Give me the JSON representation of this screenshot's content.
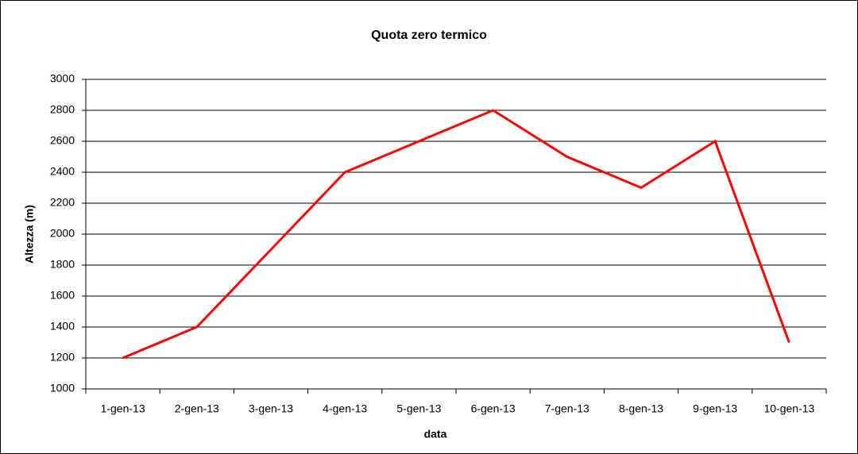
{
  "chart_data": {
    "type": "line",
    "title": "Quota zero termico",
    "x_label": "data",
    "y_label": "Altezza (m)",
    "categories": [
      "1-gen-13",
      "2-gen-13",
      "3-gen-13",
      "4-gen-13",
      "5-gen-13",
      "6-gen-13",
      "7-gen-13",
      "8-gen-13",
      "9-gen-13",
      "10-gen-13"
    ],
    "values": [
      1200,
      1400,
      1900,
      2400,
      2600,
      2800,
      2500,
      2300,
      2600,
      1300
    ],
    "color": "#ff0000",
    "ylim": [
      1000,
      3000
    ],
    "yticks": [
      1000,
      1200,
      1400,
      1600,
      1800,
      2000,
      2200,
      2400,
      2600,
      2800,
      3000
    ],
    "grid": true
  }
}
